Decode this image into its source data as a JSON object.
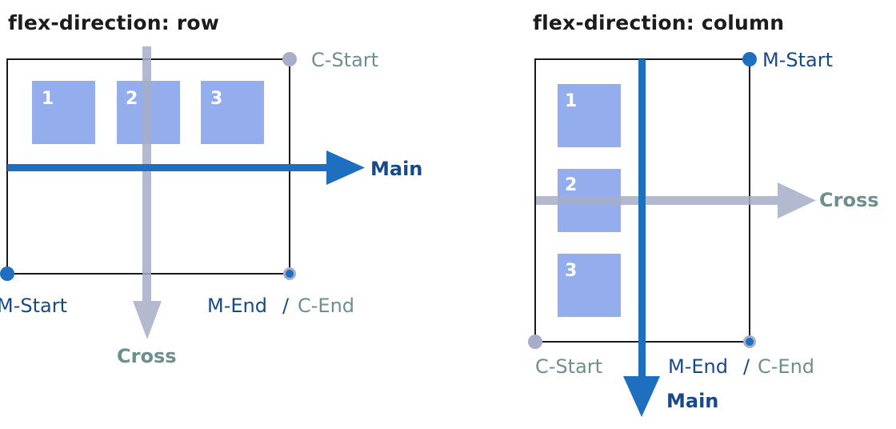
{
  "colors": {
    "main": "#1e6fbf",
    "main_dark": "#164a88",
    "cross": "#a6aec8",
    "cross_text": "#6d8f8f",
    "item_fill": "#8aa6ec",
    "border": "#1a1a1a"
  },
  "row_panel": {
    "title": "flex-direction: row",
    "items": [
      "1",
      "2",
      "3"
    ],
    "main_label": "Main",
    "cross_label": "Cross",
    "c_start": "C-Start",
    "m_start": "M-Start",
    "m_end": "M-End",
    "slash": "/",
    "c_end": "C-End"
  },
  "column_panel": {
    "title": "flex-direction: column",
    "items": [
      "1",
      "2",
      "3"
    ],
    "main_label": "Main",
    "cross_label": "Cross",
    "m_start": "M-Start",
    "c_start": "C-Start",
    "m_end": "M-End",
    "slash": "/",
    "c_end": "C-End"
  }
}
